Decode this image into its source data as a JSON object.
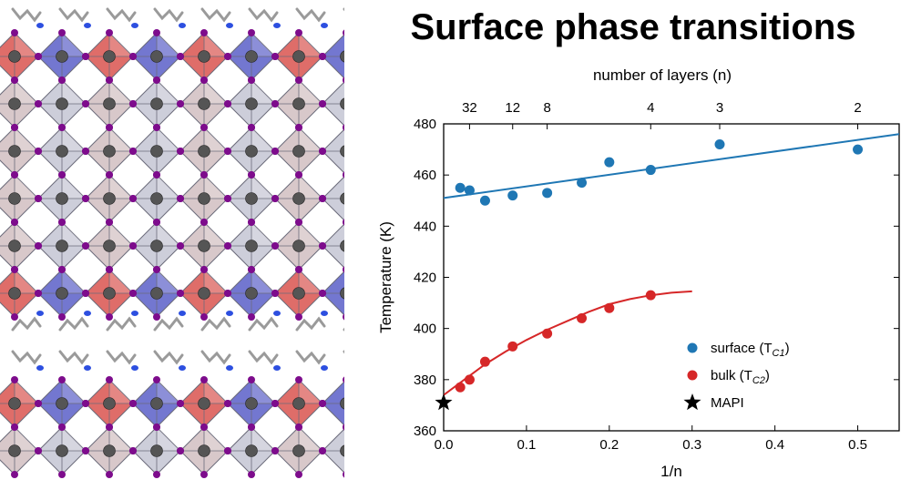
{
  "title": "Surface phase transitions",
  "chart_data": {
    "type": "scatter",
    "title": "Surface phase transitions",
    "xlabel": "1/n",
    "ylabel": "Temperature (K)",
    "top_xlabel": "number of layers (n)",
    "xlim": [
      0.0,
      0.55
    ],
    "ylim": [
      360,
      480
    ],
    "xticks": [
      0.0,
      0.1,
      0.2,
      0.3,
      0.4,
      0.5
    ],
    "xtick_labels": [
      "0.0",
      "0.1",
      "0.2",
      "0.3",
      "0.4",
      "0.5"
    ],
    "yticks": [
      360,
      380,
      400,
      420,
      440,
      460,
      480
    ],
    "ytick_labels": [
      "360",
      "380",
      "400",
      "420",
      "440",
      "460",
      "480"
    ],
    "top_ticks": [
      {
        "label": "32",
        "x": 0.03125
      },
      {
        "label": "12",
        "x": 0.08333
      },
      {
        "label": "8",
        "x": 0.125
      },
      {
        "label": "4",
        "x": 0.25
      },
      {
        "label": "3",
        "x": 0.3333
      },
      {
        "label": "2",
        "x": 0.5
      }
    ],
    "series": [
      {
        "name": "surface (T",
        "name_sub": "C1",
        "name_end": ")",
        "color": "#1f77b4",
        "marker": "circle",
        "x": [
          0.02,
          0.0313,
          0.05,
          0.0833,
          0.125,
          0.1667,
          0.2,
          0.25,
          0.3333,
          0.5
        ],
        "y": [
          455,
          454,
          450,
          452,
          453,
          457,
          465,
          462,
          472,
          470
        ],
        "fit": {
          "kind": "linear",
          "x": [
            0.0,
            0.55
          ],
          "y": [
            451,
            476
          ]
        }
      },
      {
        "name": "bulk (T",
        "name_sub": "C2",
        "name_end": ")",
        "color": "#d62728",
        "marker": "circle",
        "x": [
          0.02,
          0.0313,
          0.05,
          0.0833,
          0.125,
          0.1667,
          0.2,
          0.25
        ],
        "y": [
          377,
          380,
          387,
          393,
          398,
          404,
          408,
          413
        ],
        "fit": {
          "kind": "curve",
          "x": [
            0.0,
            0.025,
            0.05,
            0.075,
            0.1,
            0.125,
            0.15,
            0.175,
            0.2,
            0.225,
            0.25,
            0.275,
            0.3
          ],
          "y": [
            374,
            380,
            386,
            391,
            395.5,
            399.5,
            403,
            406.5,
            409.5,
            411.5,
            413,
            414,
            414.5
          ]
        }
      },
      {
        "name": "MAPI",
        "color": "#000000",
        "marker": "star",
        "x": [
          0.0
        ],
        "y": [
          371
        ]
      }
    ],
    "legend": "bottom-right",
    "grid": false
  },
  "colors": {
    "blue_octahedron": "#5a5fc8",
    "red_octahedron": "#d9534f",
    "iodide": "#7d0c8c",
    "metal_center": "#555555",
    "nitrogen": "#2d4fe0",
    "carbon": "#9a9a9a"
  }
}
